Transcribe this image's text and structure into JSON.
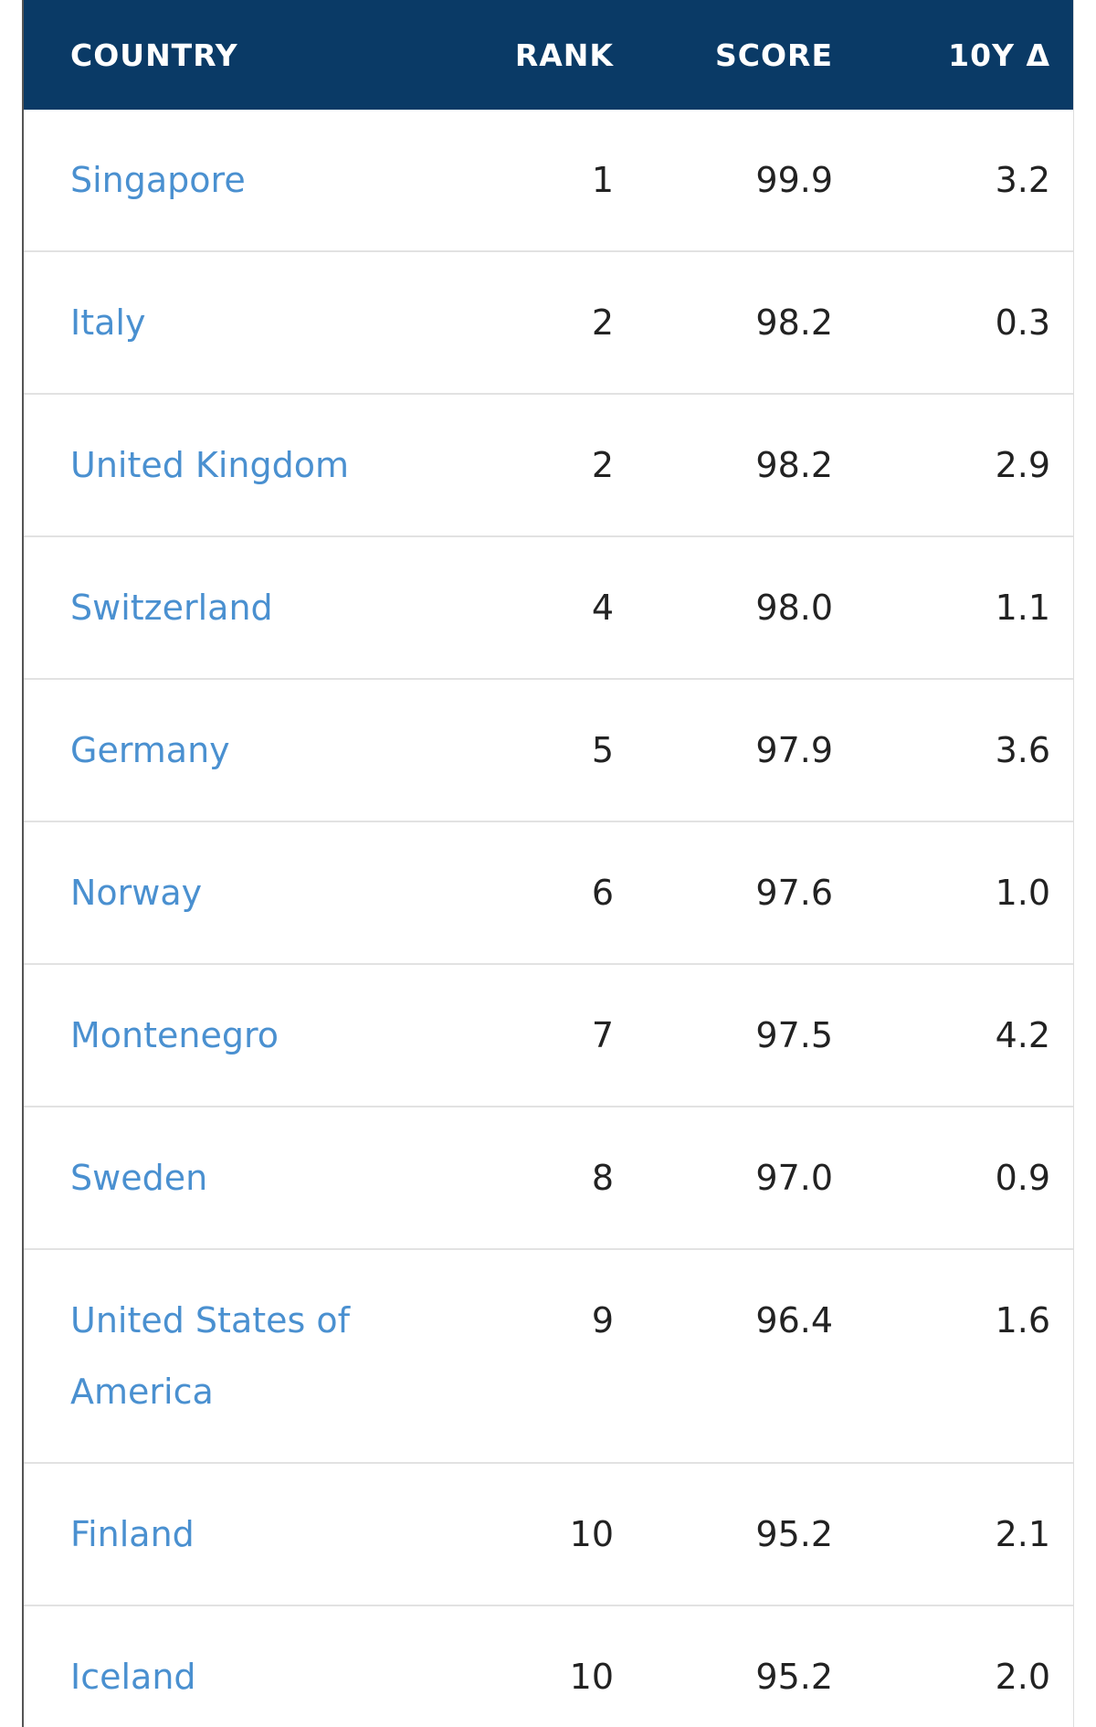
{
  "table": {
    "header": [
      "COUNTRY",
      "RANK",
      "SCORE",
      "10Y Δ"
    ],
    "rows": [
      [
        "Singapore",
        "1",
        "99.9",
        "3.2"
      ],
      [
        "Italy",
        "2",
        "98.2",
        "0.3"
      ],
      [
        "United Kingdom",
        "2",
        "98.2",
        "2.9"
      ],
      [
        "Switzerland",
        "4",
        "98.0",
        "1.1"
      ],
      [
        "Germany",
        "5",
        "97.9",
        "3.6"
      ],
      [
        "Norway",
        "6",
        "97.6",
        "1.0"
      ],
      [
        "Montenegro",
        "7",
        "97.5",
        "4.2"
      ],
      [
        "Sweden",
        "8",
        "97.0",
        "0.9"
      ],
      [
        "United States of America",
        "9",
        "96.4",
        "1.6"
      ],
      [
        "Finland",
        "10",
        "95.2",
        "2.1"
      ],
      [
        "Iceland",
        "10",
        "95.2",
        "2.0"
      ]
    ]
  }
}
